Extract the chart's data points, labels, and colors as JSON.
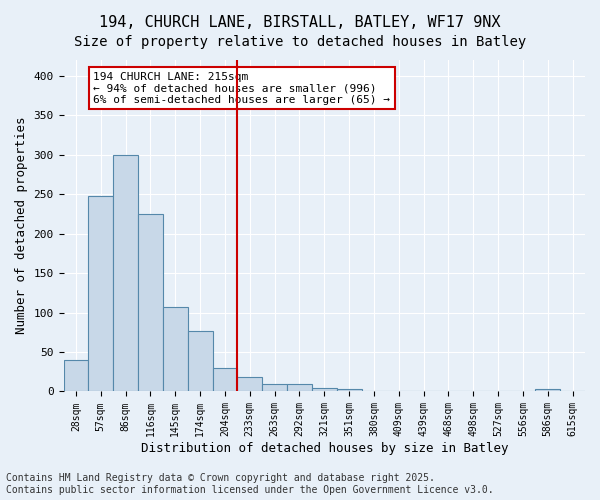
{
  "title_line1": "194, CHURCH LANE, BIRSTALL, BATLEY, WF17 9NX",
  "title_line2": "Size of property relative to detached houses in Batley",
  "xlabel": "Distribution of detached houses by size in Batley",
  "ylabel": "Number of detached properties",
  "bar_color": "#c8d8e8",
  "bar_edge_color": "#5588aa",
  "bin_labels": [
    "28sqm",
    "57sqm",
    "86sqm",
    "116sqm",
    "145sqm",
    "174sqm",
    "204sqm",
    "233sqm",
    "263sqm",
    "292sqm",
    "321sqm",
    "351sqm",
    "380sqm",
    "409sqm",
    "439sqm",
    "468sqm",
    "498sqm",
    "527sqm",
    "556sqm",
    "586sqm",
    "615sqm"
  ],
  "bar_heights": [
    40,
    248,
    300,
    225,
    107,
    77,
    30,
    18,
    10,
    9,
    5,
    3,
    1,
    0,
    0,
    0,
    0,
    0,
    0,
    3,
    0
  ],
  "vline_x": 7,
  "vline_color": "#cc0000",
  "annotation_text": "194 CHURCH LANE: 215sqm\n← 94% of detached houses are smaller (996)\n6% of semi-detached houses are larger (65) →",
  "annotation_box_color": "#cc0000",
  "ylim": [
    0,
    420
  ],
  "yticks": [
    0,
    50,
    100,
    150,
    200,
    250,
    300,
    350,
    400
  ],
  "footer_text": "Contains HM Land Registry data © Crown copyright and database right 2025.\nContains public sector information licensed under the Open Government Licence v3.0.",
  "background_color": "#e8f0f8",
  "plot_background_color": "#e8f0f8",
  "grid_color": "#ffffff",
  "title_fontsize": 11,
  "subtitle_fontsize": 10,
  "axis_label_fontsize": 9,
  "tick_fontsize": 7,
  "annotation_fontsize": 8,
  "footer_fontsize": 7
}
